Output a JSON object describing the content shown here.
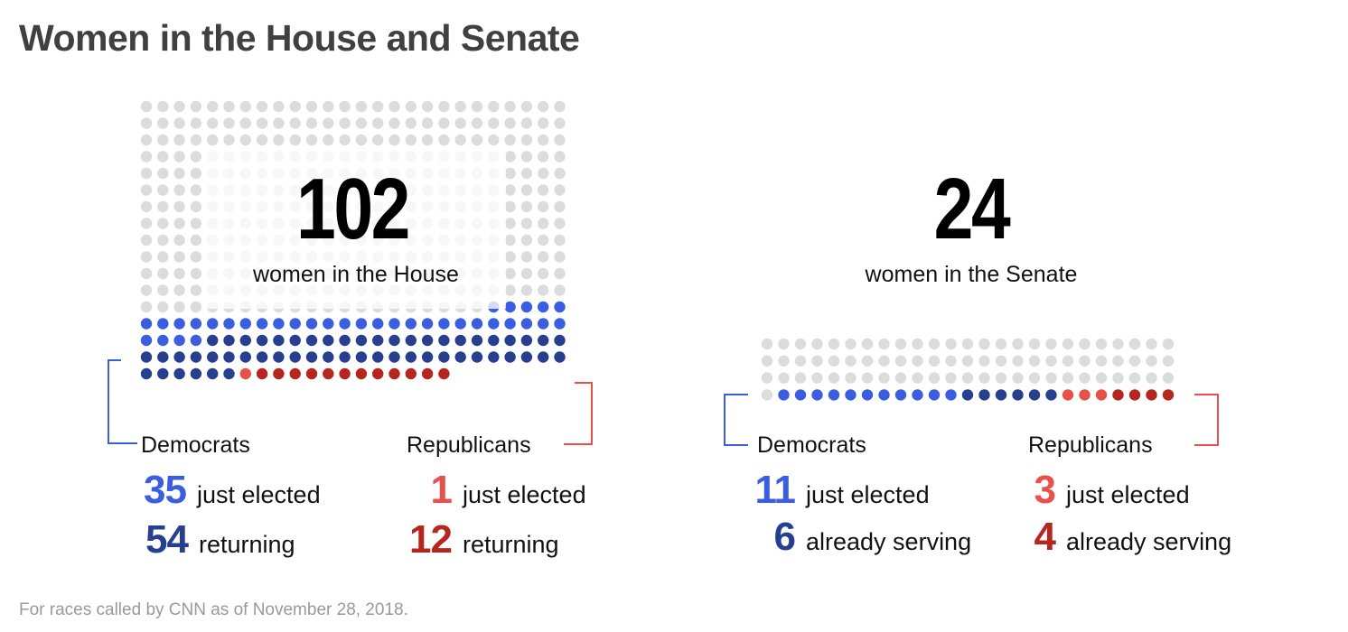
{
  "title": "Women in the House and Senate",
  "colors": {
    "empty": "#dcdcdc",
    "dem_new": "#3b5ee0",
    "dem_returning": "#263f8f",
    "rep_new": "#e8504a",
    "rep_returning": "#b7261e",
    "bracket_dem": "#3b5ee0",
    "bracket_rep": "#e8504a"
  },
  "house": {
    "number": "102",
    "subtitle": "women in the House",
    "democrats_label": "Democrats",
    "republicans_label": "Republicans",
    "dem_new": {
      "value": "35",
      "label": "just elected"
    },
    "dem_returning": {
      "value": "54",
      "label": "returning"
    },
    "rep_new": {
      "value": "1",
      "label": "just elected"
    },
    "rep_returning": {
      "value": "12",
      "label": "returning"
    }
  },
  "senate": {
    "number": "24",
    "subtitle": "women in the Senate",
    "democrats_label": "Democrats",
    "republicans_label": "Republicans",
    "dem_new": {
      "value": "11",
      "label": "just elected"
    },
    "dem_returning": {
      "value": "6",
      "label": "already serving"
    },
    "rep_new": {
      "value": "3",
      "label": "just elected"
    },
    "rep_returning": {
      "value": "4",
      "label": "already serving"
    }
  },
  "footnote": "For races called by CNN as of November 28, 2018.",
  "chart_data": [
    {
      "type": "waffle",
      "chamber": "House",
      "total_seats": 435,
      "total_women": 102,
      "series": [
        {
          "name": "Democrats just elected",
          "value": 35
        },
        {
          "name": "Democrats returning",
          "value": 54
        },
        {
          "name": "Republicans just elected",
          "value": 1
        },
        {
          "name": "Republicans returning",
          "value": 12
        }
      ]
    },
    {
      "type": "waffle",
      "chamber": "Senate",
      "total_seats": 100,
      "total_women": 24,
      "series": [
        {
          "name": "Democrats just elected",
          "value": 11
        },
        {
          "name": "Democrats already serving",
          "value": 6
        },
        {
          "name": "Republicans just elected",
          "value": 3
        },
        {
          "name": "Republicans already serving",
          "value": 4
        }
      ]
    }
  ]
}
